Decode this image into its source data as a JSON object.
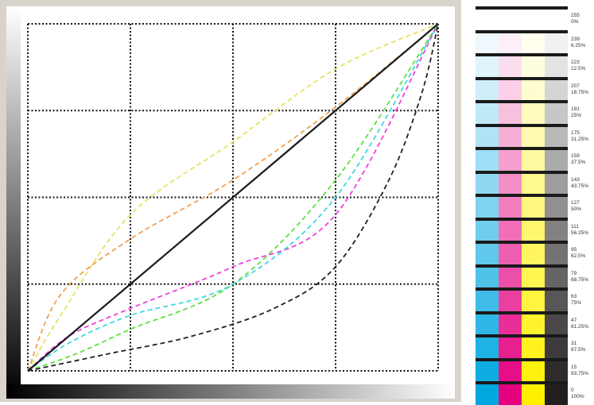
{
  "curves": {
    "diagonal_color": "#1a1a1a",
    "grid_color": "#111111",
    "series": [
      {
        "name": "yellow",
        "color": "#e8e060",
        "points": [
          [
            0,
            0
          ],
          [
            8,
            16
          ],
          [
            25,
            45
          ],
          [
            50,
            66
          ],
          [
            75,
            87
          ],
          [
            100,
            100
          ]
        ]
      },
      {
        "name": "orange",
        "color": "#f0a050",
        "points": [
          [
            0,
            0
          ],
          [
            8,
            22
          ],
          [
            25,
            38
          ],
          [
            50,
            55
          ],
          [
            75,
            76
          ],
          [
            100,
            100
          ]
        ]
      },
      {
        "name": "green",
        "color": "#60e040",
        "points": [
          [
            0,
            0
          ],
          [
            12,
            5
          ],
          [
            25,
            12
          ],
          [
            50,
            25
          ],
          [
            75,
            55
          ],
          [
            100,
            100
          ]
        ]
      },
      {
        "name": "magenta",
        "color": "#f040e0",
        "points": [
          [
            0,
            0
          ],
          [
            10,
            10
          ],
          [
            25,
            18
          ],
          [
            50,
            30
          ],
          [
            75,
            45
          ],
          [
            100,
            100
          ]
        ]
      },
      {
        "name": "cyan",
        "color": "#40d8e0",
        "points": [
          [
            0,
            0
          ],
          [
            10,
            8
          ],
          [
            25,
            16
          ],
          [
            50,
            25
          ],
          [
            75,
            50
          ],
          [
            100,
            100
          ]
        ]
      },
      {
        "name": "black",
        "color": "#222222",
        "points": [
          [
            0,
            0
          ],
          [
            20,
            5
          ],
          [
            40,
            10
          ],
          [
            60,
            18
          ],
          [
            75,
            30
          ],
          [
            88,
            55
          ],
          [
            96,
            80
          ],
          [
            100,
            100
          ]
        ]
      }
    ]
  },
  "swatches": {
    "columns": [
      "#00a7e1",
      "#e4007f",
      "#fff000",
      "#231f20"
    ],
    "rows": [
      {
        "value": "255",
        "percent": "0%"
      },
      {
        "value": "239",
        "percent": "6.25%"
      },
      {
        "value": "223",
        "percent": "12.5%"
      },
      {
        "value": "207",
        "percent": "18.75%"
      },
      {
        "value": "191",
        "percent": "25%"
      },
      {
        "value": "175",
        "percent": "31.25%"
      },
      {
        "value": "159",
        "percent": "37.5%"
      },
      {
        "value": "143",
        "percent": "43.75%"
      },
      {
        "value": "127",
        "percent": "50%"
      },
      {
        "value": "111",
        "percent": "56.25%"
      },
      {
        "value": "95",
        "percent": "62.5%"
      },
      {
        "value": "79",
        "percent": "68.75%"
      },
      {
        "value": "63",
        "percent": "75%"
      },
      {
        "value": "47",
        "percent": "81.25%"
      },
      {
        "value": "31",
        "percent": "87.5%"
      },
      {
        "value": "15",
        "percent": "93.75%"
      },
      {
        "value": "0",
        "percent": "100%"
      }
    ]
  }
}
